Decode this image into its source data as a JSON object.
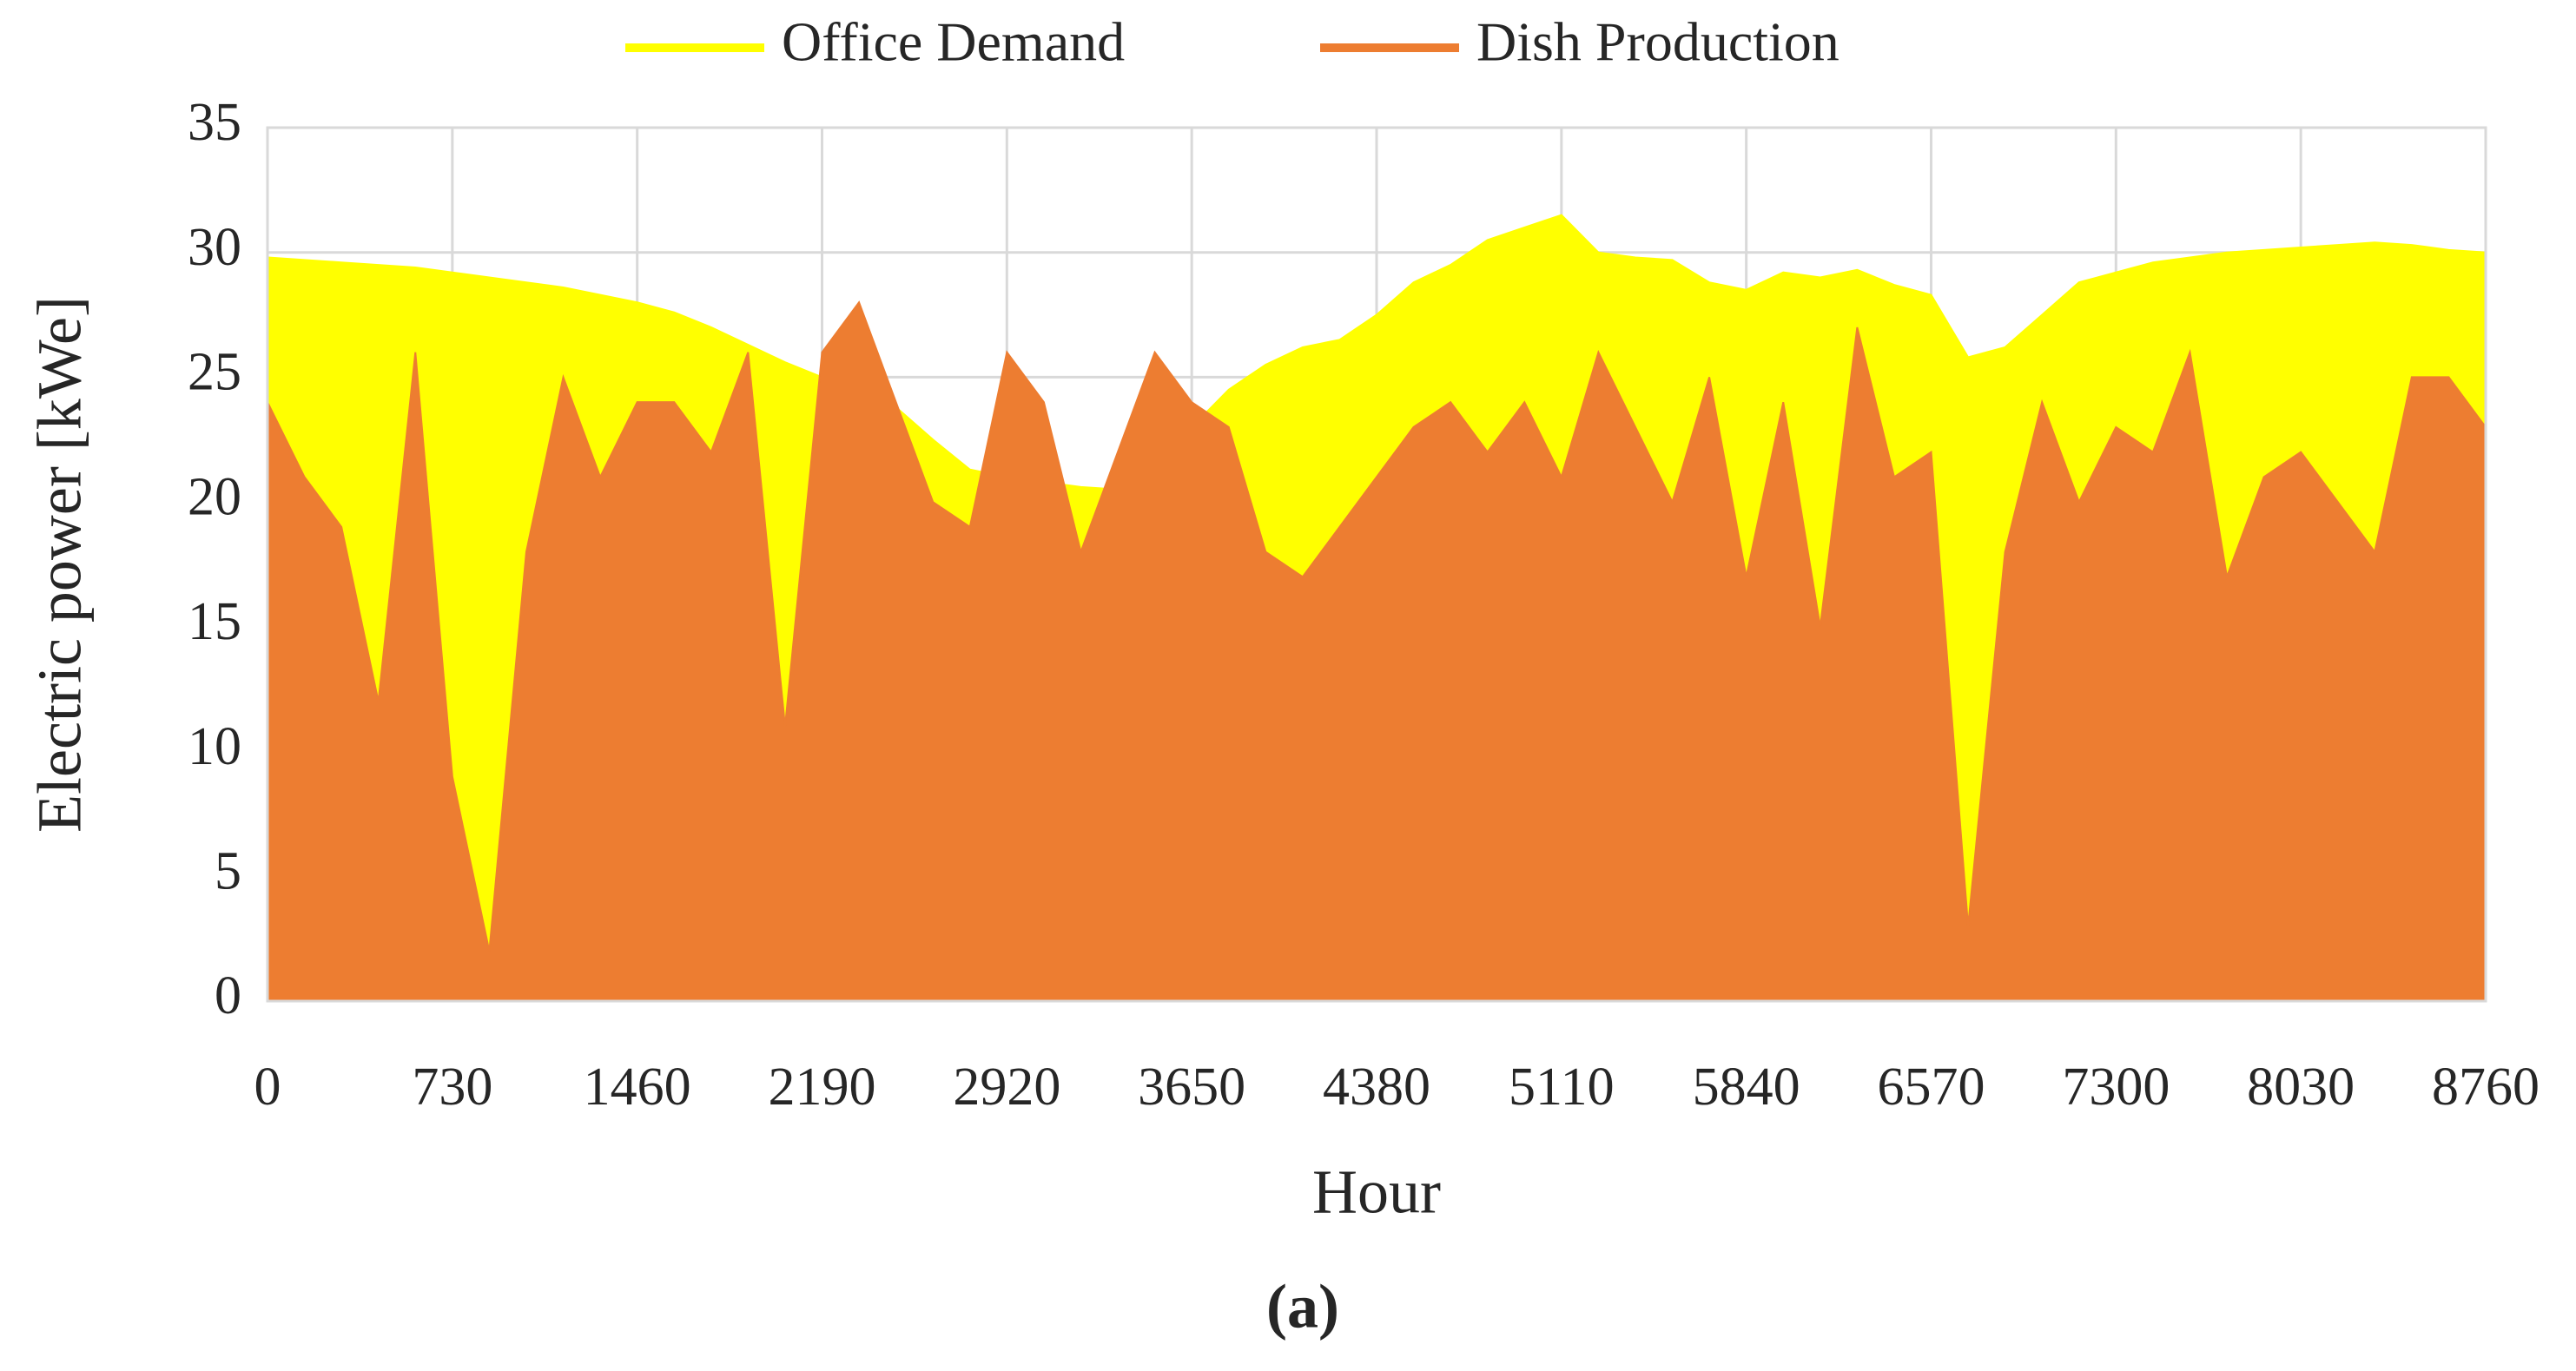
{
  "chart_data": {
    "type": "area",
    "x_label": "Hour",
    "y_label": "Electric power [kWe]",
    "caption": "(a)",
    "xlim": [
      0,
      8760
    ],
    "xticks": [
      0,
      730,
      1460,
      2190,
      2920,
      3650,
      4380,
      5110,
      5840,
      6570,
      7300,
      8030,
      8760
    ],
    "ylim": [
      0,
      35
    ],
    "yticks": [
      0,
      5,
      10,
      15,
      20,
      25,
      30,
      35
    ],
    "grid": true,
    "legend": "top",
    "x": [
      0,
      146,
      292,
      438,
      584,
      730,
      876,
      1022,
      1168,
      1314,
      1460,
      1606,
      1752,
      1898,
      2044,
      2190,
      2336,
      2482,
      2628,
      2774,
      2920,
      3066,
      3212,
      3358,
      3504,
      3650,
      3796,
      3942,
      4088,
      4234,
      4380,
      4526,
      4672,
      4818,
      4964,
      5110,
      5256,
      5402,
      5548,
      5694,
      5840,
      5986,
      6132,
      6278,
      6424,
      6570,
      6716,
      6862,
      7008,
      7154,
      7300,
      7446,
      7592,
      7738,
      7884,
      8030,
      8176,
      8322,
      8468,
      8614,
      8760
    ],
    "series": [
      {
        "name": "Office Demand",
        "color": "#ffff00",
        "values": [
          29.8,
          29.7,
          29.6,
          29.5,
          29.4,
          29.2,
          29.0,
          28.8,
          28.6,
          28.3,
          28.0,
          27.6,
          27.0,
          26.3,
          25.6,
          25.0,
          24.2,
          23.8,
          22.5,
          21.3,
          21.0,
          20.8,
          20.6,
          20.5,
          20.6,
          23.0,
          24.5,
          25.5,
          26.2,
          26.5,
          27.5,
          28.8,
          29.5,
          30.5,
          31.0,
          31.5,
          30.0,
          29.8,
          29.7,
          28.8,
          28.5,
          29.2,
          29.0,
          29.3,
          28.7,
          28.3,
          25.8,
          26.2,
          27.5,
          28.8,
          29.2,
          29.6,
          29.8,
          30.0,
          30.1,
          30.2,
          30.3,
          30.4,
          30.3,
          30.1,
          30.0
        ]
      },
      {
        "name": "Dish Production",
        "color": "#ed7d31",
        "values": [
          24,
          21,
          19,
          12,
          26,
          9,
          2,
          18,
          25,
          21,
          24,
          24,
          22,
          26,
          11,
          26,
          28,
          24,
          20,
          19,
          26,
          24,
          18,
          22,
          26,
          24,
          23,
          18,
          17,
          19,
          21,
          23,
          24,
          22,
          24,
          21,
          26,
          23,
          20,
          25,
          17,
          24,
          15,
          27,
          21,
          22,
          3,
          18,
          24,
          20,
          23,
          22,
          26,
          17,
          21,
          22,
          20,
          18,
          25,
          25,
          23
        ]
      }
    ]
  }
}
